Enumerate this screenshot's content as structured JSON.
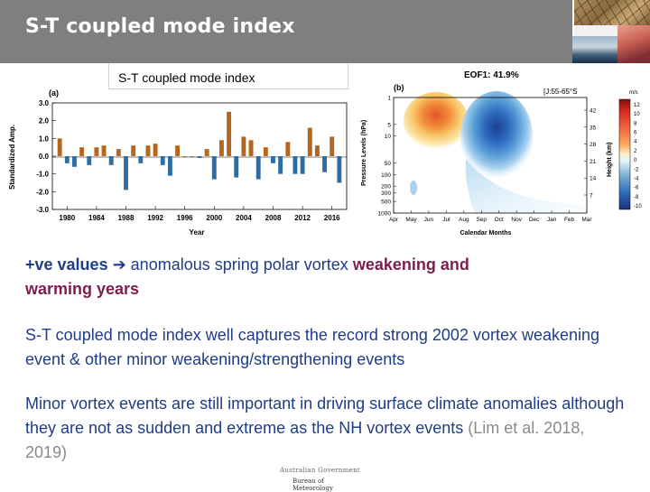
{
  "slide": {
    "title": "S-T coupled mode index",
    "subtitle": "S-T coupled mode index"
  },
  "panel_a": {
    "label": "(a)",
    "ylabel": "Standardized Amp.",
    "xlabel": "Year",
    "yticks": [
      "3.0",
      "2.0",
      "1.0",
      "0.0",
      "-1.0",
      "-2.0",
      "-3.0"
    ],
    "xticks": [
      "1980",
      "1984",
      "1988",
      "1992",
      "1996",
      "2000",
      "2004",
      "2008",
      "2012",
      "2016"
    ]
  },
  "panel_b": {
    "label": "(b)",
    "eof_title": "EOF1: 41.9%",
    "region": "[J:55-65°S",
    "ylabel_left": "Pressure Levels (hPa)",
    "ylabel_right": "Height (km)",
    "xlabel": "Calendar Months",
    "colorbar_unit": "m/s",
    "left_ticks": [
      "1",
      "5",
      "10",
      "50",
      "100",
      "200",
      "300",
      "500",
      "1000"
    ],
    "right_ticks": [
      "42",
      "35",
      "28",
      "21",
      "14",
      "7"
    ],
    "month_ticks": [
      "Apr",
      "May",
      "Jun",
      "Jul",
      "Aug",
      "Sep",
      "Oct",
      "Nov",
      "Dec",
      "Jan",
      "Feb",
      "Mar"
    ],
    "colorbar_ticks": [
      "12",
      "10",
      "8",
      "6",
      "4",
      "2",
      "0",
      "-2",
      "-4",
      "-6",
      "-8",
      "-10"
    ]
  },
  "chart_data": [
    {
      "type": "bar",
      "title": "",
      "xlabel": "Year",
      "ylabel": "Standardized Amp.",
      "ylim": [
        -3.0,
        3.0
      ],
      "grid": false,
      "categories": [
        "1979",
        "1980",
        "1981",
        "1982",
        "1983",
        "1984",
        "1985",
        "1986",
        "1987",
        "1988",
        "1989",
        "1990",
        "1991",
        "1992",
        "1993",
        "1994",
        "1995",
        "1996",
        "1997",
        "1998",
        "1999",
        "2000",
        "2001",
        "2002",
        "2003",
        "2004",
        "2005",
        "2006",
        "2007",
        "2008",
        "2009",
        "2010",
        "2011",
        "2012",
        "2013",
        "2014",
        "2015",
        "2016",
        "2017"
      ],
      "values": [
        1.0,
        -0.4,
        -0.6,
        0.5,
        -0.5,
        0.5,
        0.6,
        -0.5,
        0.4,
        -1.9,
        0.6,
        -0.4,
        0.6,
        0.7,
        -0.5,
        -1.1,
        0.6,
        0.0,
        0.0,
        -0.1,
        0.4,
        -1.3,
        0.9,
        2.5,
        -1.2,
        1.1,
        0.9,
        -1.3,
        0.5,
        -0.4,
        -1.0,
        0.8,
        -1.0,
        -1.0,
        1.6,
        0.6,
        -0.9,
        1.1,
        -1.5
      ],
      "colors": {
        "positive": "#b5651d",
        "negative": "#2e6da4"
      }
    }
  ],
  "text": {
    "b1_part1": "+ve values ",
    "b1_part2": " anomalous spring polar vortex ",
    "b1_part3": "weakening and",
    "b1_part4": "warming years",
    "b2": "S-T coupled mode index well captures the record strong 2002 vortex weakening event & other minor weakening/strengthening events",
    "b3_part1": "Minor vortex events are still important in driving surface climate anomalies although they are not as sudden and extreme as the NH vortex events ",
    "b3_part2": "(Lim et al. 2018, 2019)"
  },
  "logo": {
    "line1": "Australian Government",
    "line2": "Bureau of Meteorology"
  },
  "colors": {
    "title_bar": "#7f7f7f",
    "body_text": "#1f3c88",
    "emphasis": "#7c1d4d",
    "citation": "#8a8a8a"
  }
}
